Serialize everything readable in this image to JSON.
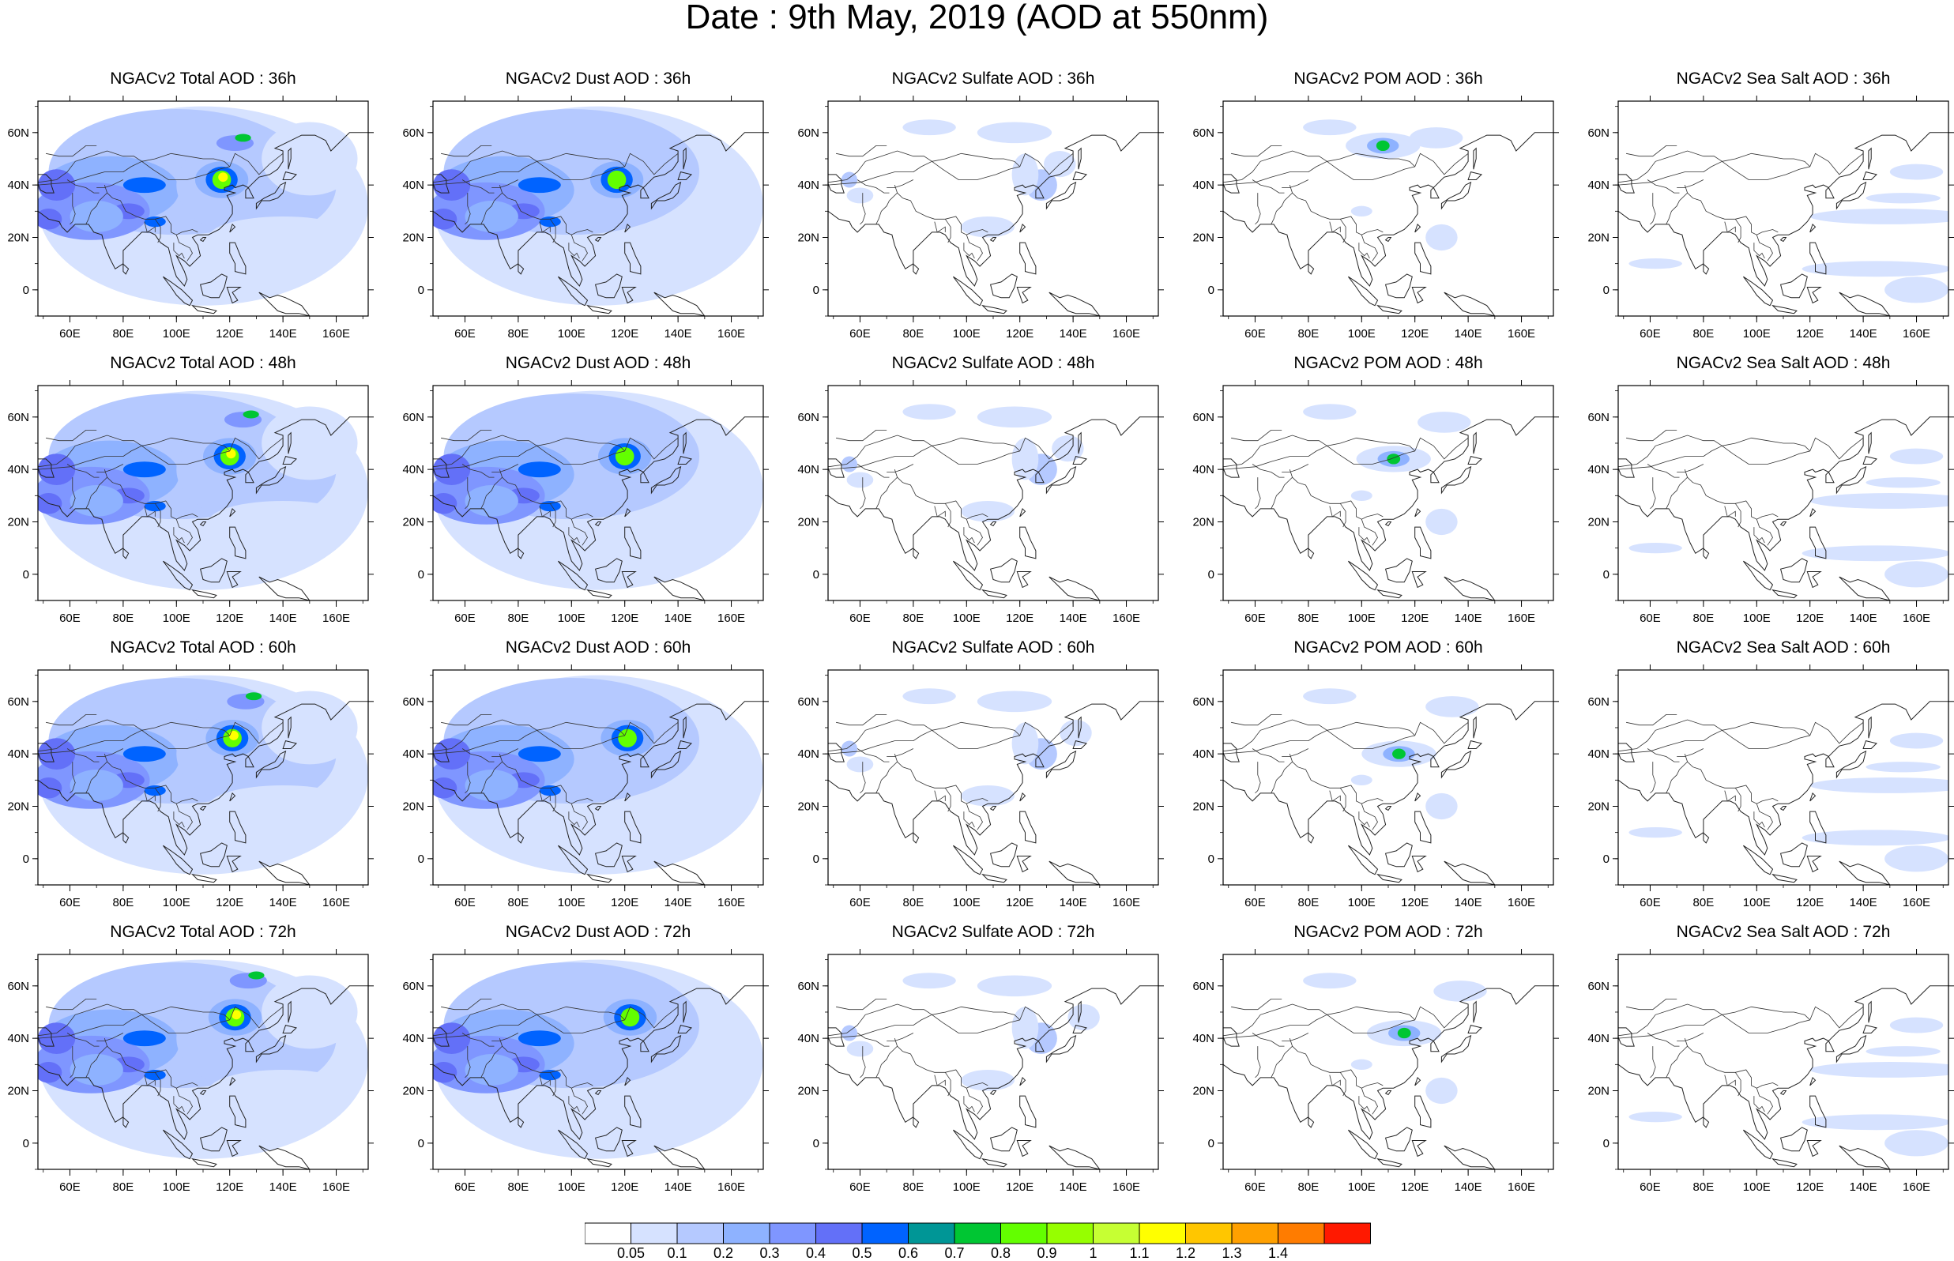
{
  "figure": {
    "title": "Date : 9th May, 2019 (AOD at 550nm)"
  },
  "latitude_ticks": [
    "60N",
    "40N",
    "20N",
    "0"
  ],
  "longitude_ticks": [
    "60E",
    "80E",
    "100E",
    "120E",
    "140E",
    "160E"
  ],
  "panels": [
    {
      "title": "NGACv2 Total AOD : 36h",
      "species": "total",
      "lead": "36h"
    },
    {
      "title": "NGACv2 Dust AOD : 36h",
      "species": "dust",
      "lead": "36h"
    },
    {
      "title": "NGACv2 Sulfate AOD : 36h",
      "species": "sulfate",
      "lead": "36h"
    },
    {
      "title": "NGACv2 POM AOD : 36h",
      "species": "pom",
      "lead": "36h"
    },
    {
      "title": "NGACv2 Sea Salt AOD : 36h",
      "species": "seasalt",
      "lead": "36h"
    },
    {
      "title": "NGACv2 Total AOD : 48h",
      "species": "total",
      "lead": "48h"
    },
    {
      "title": "NGACv2 Dust AOD : 48h",
      "species": "dust",
      "lead": "48h"
    },
    {
      "title": "NGACv2 Sulfate AOD : 48h",
      "species": "sulfate",
      "lead": "48h"
    },
    {
      "title": "NGACv2 POM AOD : 48h",
      "species": "pom",
      "lead": "48h"
    },
    {
      "title": "NGACv2 Sea Salt AOD : 48h",
      "species": "seasalt",
      "lead": "48h"
    },
    {
      "title": "NGACv2 Total AOD : 60h",
      "species": "total",
      "lead": "60h"
    },
    {
      "title": "NGACv2 Dust AOD : 60h",
      "species": "dust",
      "lead": "60h"
    },
    {
      "title": "NGACv2 Sulfate AOD : 60h",
      "species": "sulfate",
      "lead": "60h"
    },
    {
      "title": "NGACv2 POM AOD : 60h",
      "species": "pom",
      "lead": "60h"
    },
    {
      "title": "NGACv2 Sea Salt AOD : 60h",
      "species": "seasalt",
      "lead": "60h"
    },
    {
      "title": "NGACv2 Total AOD : 72h",
      "species": "total",
      "lead": "72h"
    },
    {
      "title": "NGACv2 Dust AOD : 72h",
      "species": "dust",
      "lead": "72h"
    },
    {
      "title": "NGACv2 Sulfate AOD : 72h",
      "species": "sulfate",
      "lead": "72h"
    },
    {
      "title": "NGACv2 POM AOD : 72h",
      "species": "pom",
      "lead": "72h"
    },
    {
      "title": "NGACv2 Sea Salt  AOD : 72h",
      "species": "seasalt",
      "lead": "72h"
    }
  ],
  "colorbar": {
    "labels": [
      "0.05",
      "0.1",
      "0.2",
      "0.3",
      "0.4",
      "0.5",
      "0.6",
      "0.7",
      "0.8",
      "0.9",
      "1",
      "1.1",
      "1.2",
      "1.3",
      "1.4"
    ],
    "colors": [
      "#ffffff",
      "#d6e2ff",
      "#b5c9ff",
      "#8eb2ff",
      "#7f96ff",
      "#6370f8",
      "#0063ff",
      "#009696",
      "#00c633",
      "#63ff00",
      "#96ff00",
      "#c6ff33",
      "#ffff00",
      "#ffc600",
      "#ffa000",
      "#ff7c00",
      "#ff1900"
    ]
  }
}
